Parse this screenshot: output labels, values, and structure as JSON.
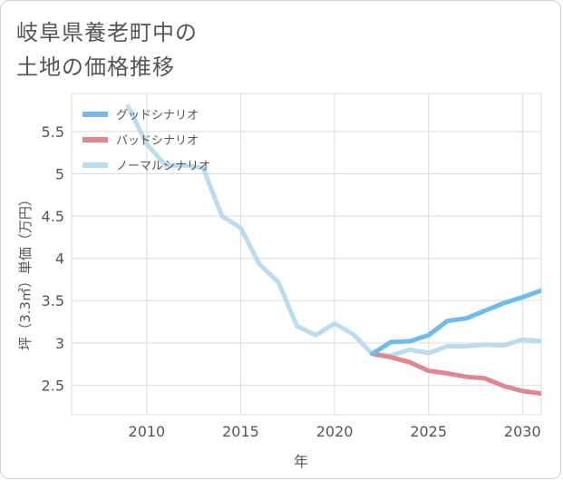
{
  "title_lines": [
    "岐阜県養老町中の",
    "土地の価格推移"
  ],
  "chart_data": {
    "type": "line",
    "title": "岐阜県養老町中の土地の価格推移",
    "xlabel": "年",
    "ylabel": "坪（3.3㎡）単価（万円）",
    "xlim": [
      2006,
      2031
    ],
    "ylim": [
      2.15,
      5.95
    ],
    "xticks": [
      2010,
      2015,
      2020,
      2025,
      2030
    ],
    "yticks": [
      2.5,
      3,
      3.5,
      4,
      4.5,
      5,
      5.5
    ],
    "ytick_labels": [
      "2.5",
      "3",
      "3.5",
      "4",
      "4.5",
      "5",
      "5.5"
    ],
    "legend_position": "top-left",
    "series": [
      {
        "name": "グッドシナリオ",
        "color": "#6ebbec",
        "x": [
          2022,
          2023,
          2024,
          2025,
          2026,
          2027,
          2028,
          2029,
          2030,
          2031
        ],
        "y": [
          2.87,
          3.01,
          3.02,
          3.09,
          3.26,
          3.29,
          3.38,
          3.47,
          3.54,
          3.62
        ]
      },
      {
        "name": "バッドシナリオ",
        "color": "#e0868f",
        "x": [
          2022,
          2023,
          2024,
          2025,
          2026,
          2027,
          2028,
          2029,
          2030,
          2031
        ],
        "y": [
          2.87,
          2.83,
          2.77,
          2.67,
          2.64,
          2.6,
          2.58,
          2.49,
          2.43,
          2.4
        ]
      },
      {
        "name": "ノーマルシナリオ",
        "color": "#badcee",
        "x": [
          2009,
          2010,
          2011,
          2012,
          2013,
          2014,
          2015,
          2016,
          2017,
          2018,
          2019,
          2020,
          2021,
          2022,
          2023,
          2024,
          2025,
          2026,
          2027,
          2028,
          2029,
          2030,
          2031
        ],
        "y": [
          5.8,
          5.35,
          5.1,
          5.1,
          5.07,
          4.5,
          4.36,
          3.93,
          3.72,
          3.2,
          3.09,
          3.23,
          3.1,
          2.87,
          2.85,
          2.92,
          2.88,
          2.96,
          2.96,
          2.98,
          2.97,
          3.04,
          3.02
        ]
      }
    ]
  }
}
